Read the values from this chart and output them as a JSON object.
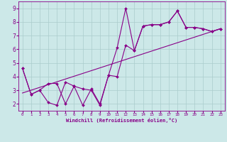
{
  "background_color": "#cce8e8",
  "grid_color": "#aacccc",
  "line_color": "#880088",
  "marker_color": "#880088",
  "xlim": [
    -0.5,
    23.5
  ],
  "ylim": [
    1.5,
    9.5
  ],
  "yticks": [
    2,
    3,
    4,
    5,
    6,
    7,
    8,
    9
  ],
  "xticks": [
    0,
    1,
    2,
    3,
    4,
    5,
    6,
    7,
    8,
    9,
    10,
    11,
    12,
    13,
    14,
    15,
    16,
    17,
    18,
    19,
    20,
    21,
    22,
    23
  ],
  "xlabel": "Windchill (Refroidissement éolien,°C)",
  "line1_x": [
    0,
    1,
    2,
    3,
    4,
    5,
    6,
    7,
    8,
    9,
    10,
    11,
    12,
    13,
    14,
    15,
    16,
    17,
    18,
    19,
    20,
    21,
    22,
    23
  ],
  "line1_y": [
    4.6,
    2.7,
    3.0,
    2.1,
    1.9,
    3.6,
    3.3,
    3.1,
    3.0,
    1.9,
    4.1,
    6.1,
    9.0,
    5.9,
    7.7,
    7.8,
    7.8,
    8.0,
    8.8,
    7.6,
    7.6,
    7.5,
    7.3,
    7.5
  ],
  "line2_x": [
    0,
    1,
    2,
    3,
    4,
    5,
    6,
    7,
    8,
    9,
    10,
    11,
    12,
    13,
    14,
    15,
    16,
    17,
    18,
    19,
    20,
    21,
    22,
    23
  ],
  "line2_y": [
    4.6,
    2.7,
    3.0,
    3.5,
    3.5,
    2.0,
    3.3,
    1.9,
    3.1,
    2.0,
    4.1,
    4.0,
    6.3,
    5.9,
    7.7,
    7.8,
    7.8,
    8.0,
    8.8,
    7.6,
    7.6,
    7.5,
    7.3,
    7.5
  ],
  "line3_x": [
    0,
    23
  ],
  "line3_y": [
    2.8,
    7.5
  ]
}
